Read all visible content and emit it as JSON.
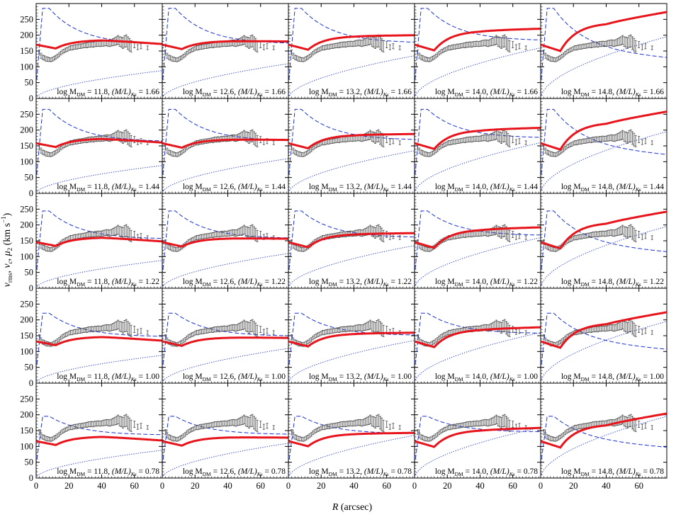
{
  "figure": {
    "xlabel_var": "R",
    "xlabel_unit": "(arcsec)",
    "ylabel": "v_rms, v_c, μ_2 (km s^-1)"
  },
  "chart_data": {
    "type": "line",
    "layout": "grid 5 rows x 5 columns, shared axes",
    "xlim": [
      0,
      77
    ],
    "ylim": [
      0,
      300
    ],
    "x_ticks": [
      0,
      20,
      40,
      60
    ],
    "y_ticks": [
      0,
      50,
      100,
      150,
      200,
      250
    ],
    "grid": false,
    "row_ml": [
      "1.66",
      "1.44",
      "1.22",
      "1.00",
      "0.78"
    ],
    "col_mdm": [
      "11.8",
      "12.6",
      "13.2",
      "14.0",
      "14.8"
    ],
    "panel_label_prefix": "log M",
    "panel_label_dm": "DM",
    "panel_label_ml": "(M/L)",
    "panel_label_ks": "Ks",
    "colors": {
      "model": "#e8141c",
      "total_vc": "#1a2fd4",
      "dm_vc": "#1a2fd4",
      "data": "#555555"
    },
    "observed_data": {
      "x": [
        2,
        3,
        4,
        5,
        6,
        7,
        8,
        9,
        10,
        11,
        12,
        13,
        14,
        15,
        16,
        17,
        18,
        19,
        20,
        21,
        22,
        23,
        24,
        25,
        26,
        27,
        28,
        29,
        30,
        31,
        32,
        33,
        34,
        35,
        36,
        37,
        38,
        39,
        40,
        41,
        42,
        43,
        44,
        45,
        46,
        47,
        48,
        49,
        50,
        51,
        52,
        53,
        54,
        55,
        56,
        57,
        58,
        60,
        62,
        64,
        68
      ],
      "y": [
        145,
        135,
        130,
        128,
        125,
        124,
        123,
        122,
        124,
        127,
        130,
        134,
        138,
        143,
        147,
        150,
        153,
        155,
        158,
        160,
        160,
        162,
        163,
        163,
        165,
        165,
        166,
        167,
        168,
        168,
        170,
        170,
        171,
        170,
        172,
        172,
        173,
        172,
        173,
        174,
        175,
        176,
        175,
        174,
        176,
        178,
        180,
        182,
        185,
        180,
        178,
        175,
        180,
        182,
        175,
        170,
        165,
        170,
        162,
        165,
        160
      ],
      "err": [
        8,
        8,
        7,
        7,
        7,
        7,
        6,
        6,
        6,
        6,
        6,
        6,
        6,
        6,
        6,
        6,
        6,
        6,
        6,
        7,
        7,
        7,
        7,
        7,
        7,
        7,
        7,
        7,
        7,
        8,
        8,
        8,
        8,
        8,
        8,
        8,
        8,
        8,
        8,
        9,
        9,
        9,
        10,
        10,
        10,
        11,
        12,
        13,
        14,
        15,
        16,
        17,
        18,
        19,
        20,
        20,
        18,
        10,
        8,
        8,
        6
      ]
    }
  }
}
